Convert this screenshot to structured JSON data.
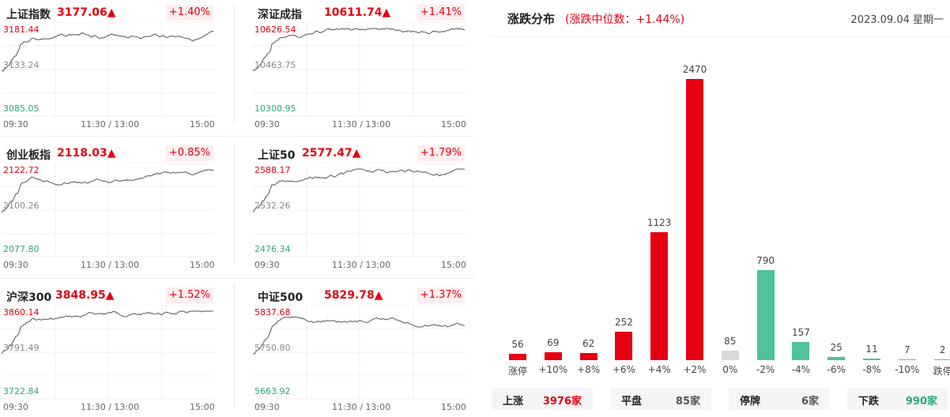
{
  "indices": [
    {
      "name": "上证指数",
      "value": "3177.06▲",
      "change": "+1.40%",
      "high": "3181.44",
      "mid": "3133.24",
      "low": "3085.05"
    },
    {
      "name": "深证成指",
      "value": "10611.74▲",
      "change": "+1.41%",
      "high": "10626.54",
      "mid": "10463.75",
      "low": "10300.95"
    },
    {
      "name": "创业板指",
      "value": "2118.03▲",
      "change": "+0.85%",
      "high": "2122.72",
      "mid": "2100.26",
      "low": "2077.80"
    },
    {
      "name": "上证50",
      "value": "2577.47▲",
      "change": "+1.79%",
      "high": "2588.17",
      "mid": "2532.26",
      "low": "2476.34"
    },
    {
      "name": "沪深300",
      "value": "3848.95▲",
      "change": "+1.52%",
      "high": "3860.14",
      "mid": "3791.49",
      "low": "3722.84"
    },
    {
      "name": "中证500",
      "value": "5829.78▲",
      "change": "+1.37%",
      "high": "5837.68",
      "mid": "5750.80",
      "low": "5663.92"
    }
  ],
  "time_labels": {
    "start": "09:30",
    "middle": "11:30 / 13:00",
    "end": "15:00"
  },
  "distribution": {
    "title": "涨跌分布",
    "subtitle": "(涨跌中位数：+1.44%)",
    "date": "2023.09.04 星期一"
  },
  "chart_data": {
    "type": "bar",
    "categories": [
      "涨停",
      "+10%",
      "+8%",
      "+6%",
      "+4%",
      "+2%",
      "0%",
      "-2%",
      "-4%",
      "-6%",
      "-8%",
      "-10%",
      "跌停"
    ],
    "values": [
      56,
      69,
      62,
      252,
      1123,
      2470,
      85,
      790,
      157,
      25,
      11,
      7,
      2
    ],
    "colors": [
      "#e60012",
      "#e60012",
      "#e60012",
      "#e60012",
      "#e60012",
      "#e60012",
      "#d9d9d9",
      "#4fc29e",
      "#4fc29e",
      "#4fc29e",
      "#4fc29e",
      "#4fc29e",
      "#4fc29e"
    ]
  },
  "summary": [
    {
      "label": "上涨",
      "value": "3976家",
      "color": "#e60012"
    },
    {
      "label": "平盘",
      "value": "85家",
      "color": "#555555"
    },
    {
      "label": "停牌",
      "value": "6家",
      "color": "#555555"
    },
    {
      "label": "下跌",
      "value": "990家",
      "color": "#2aa876"
    }
  ]
}
